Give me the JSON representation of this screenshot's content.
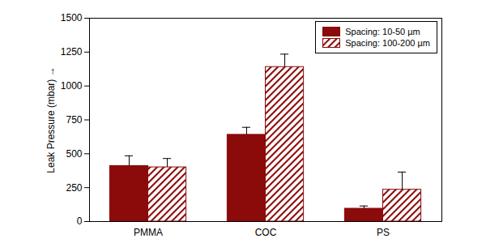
{
  "chart_data": {
    "type": "bar",
    "ylabel": "Leak Pressure (mbar)",
    "categories": [
      "PMMA",
      "COC",
      "PS"
    ],
    "series": [
      {
        "name": "Spacing: 10-50 µm",
        "color": "#8b0a0a",
        "line_style": "solid",
        "values": [
          410,
          640,
          95
        ],
        "errors": [
          75,
          55,
          20
        ]
      },
      {
        "name": "Spacing: 100-200 µm",
        "color": "#8b0a0a",
        "line_style": "hatched",
        "values": [
          400,
          1140,
          235
        ],
        "errors": [
          65,
          95,
          130
        ]
      }
    ],
    "ylim": [
      0,
      1500
    ],
    "yticks": [
      0,
      250,
      500,
      750,
      1000,
      1250,
      1500
    ],
    "grid": false,
    "legend": "upper right"
  }
}
